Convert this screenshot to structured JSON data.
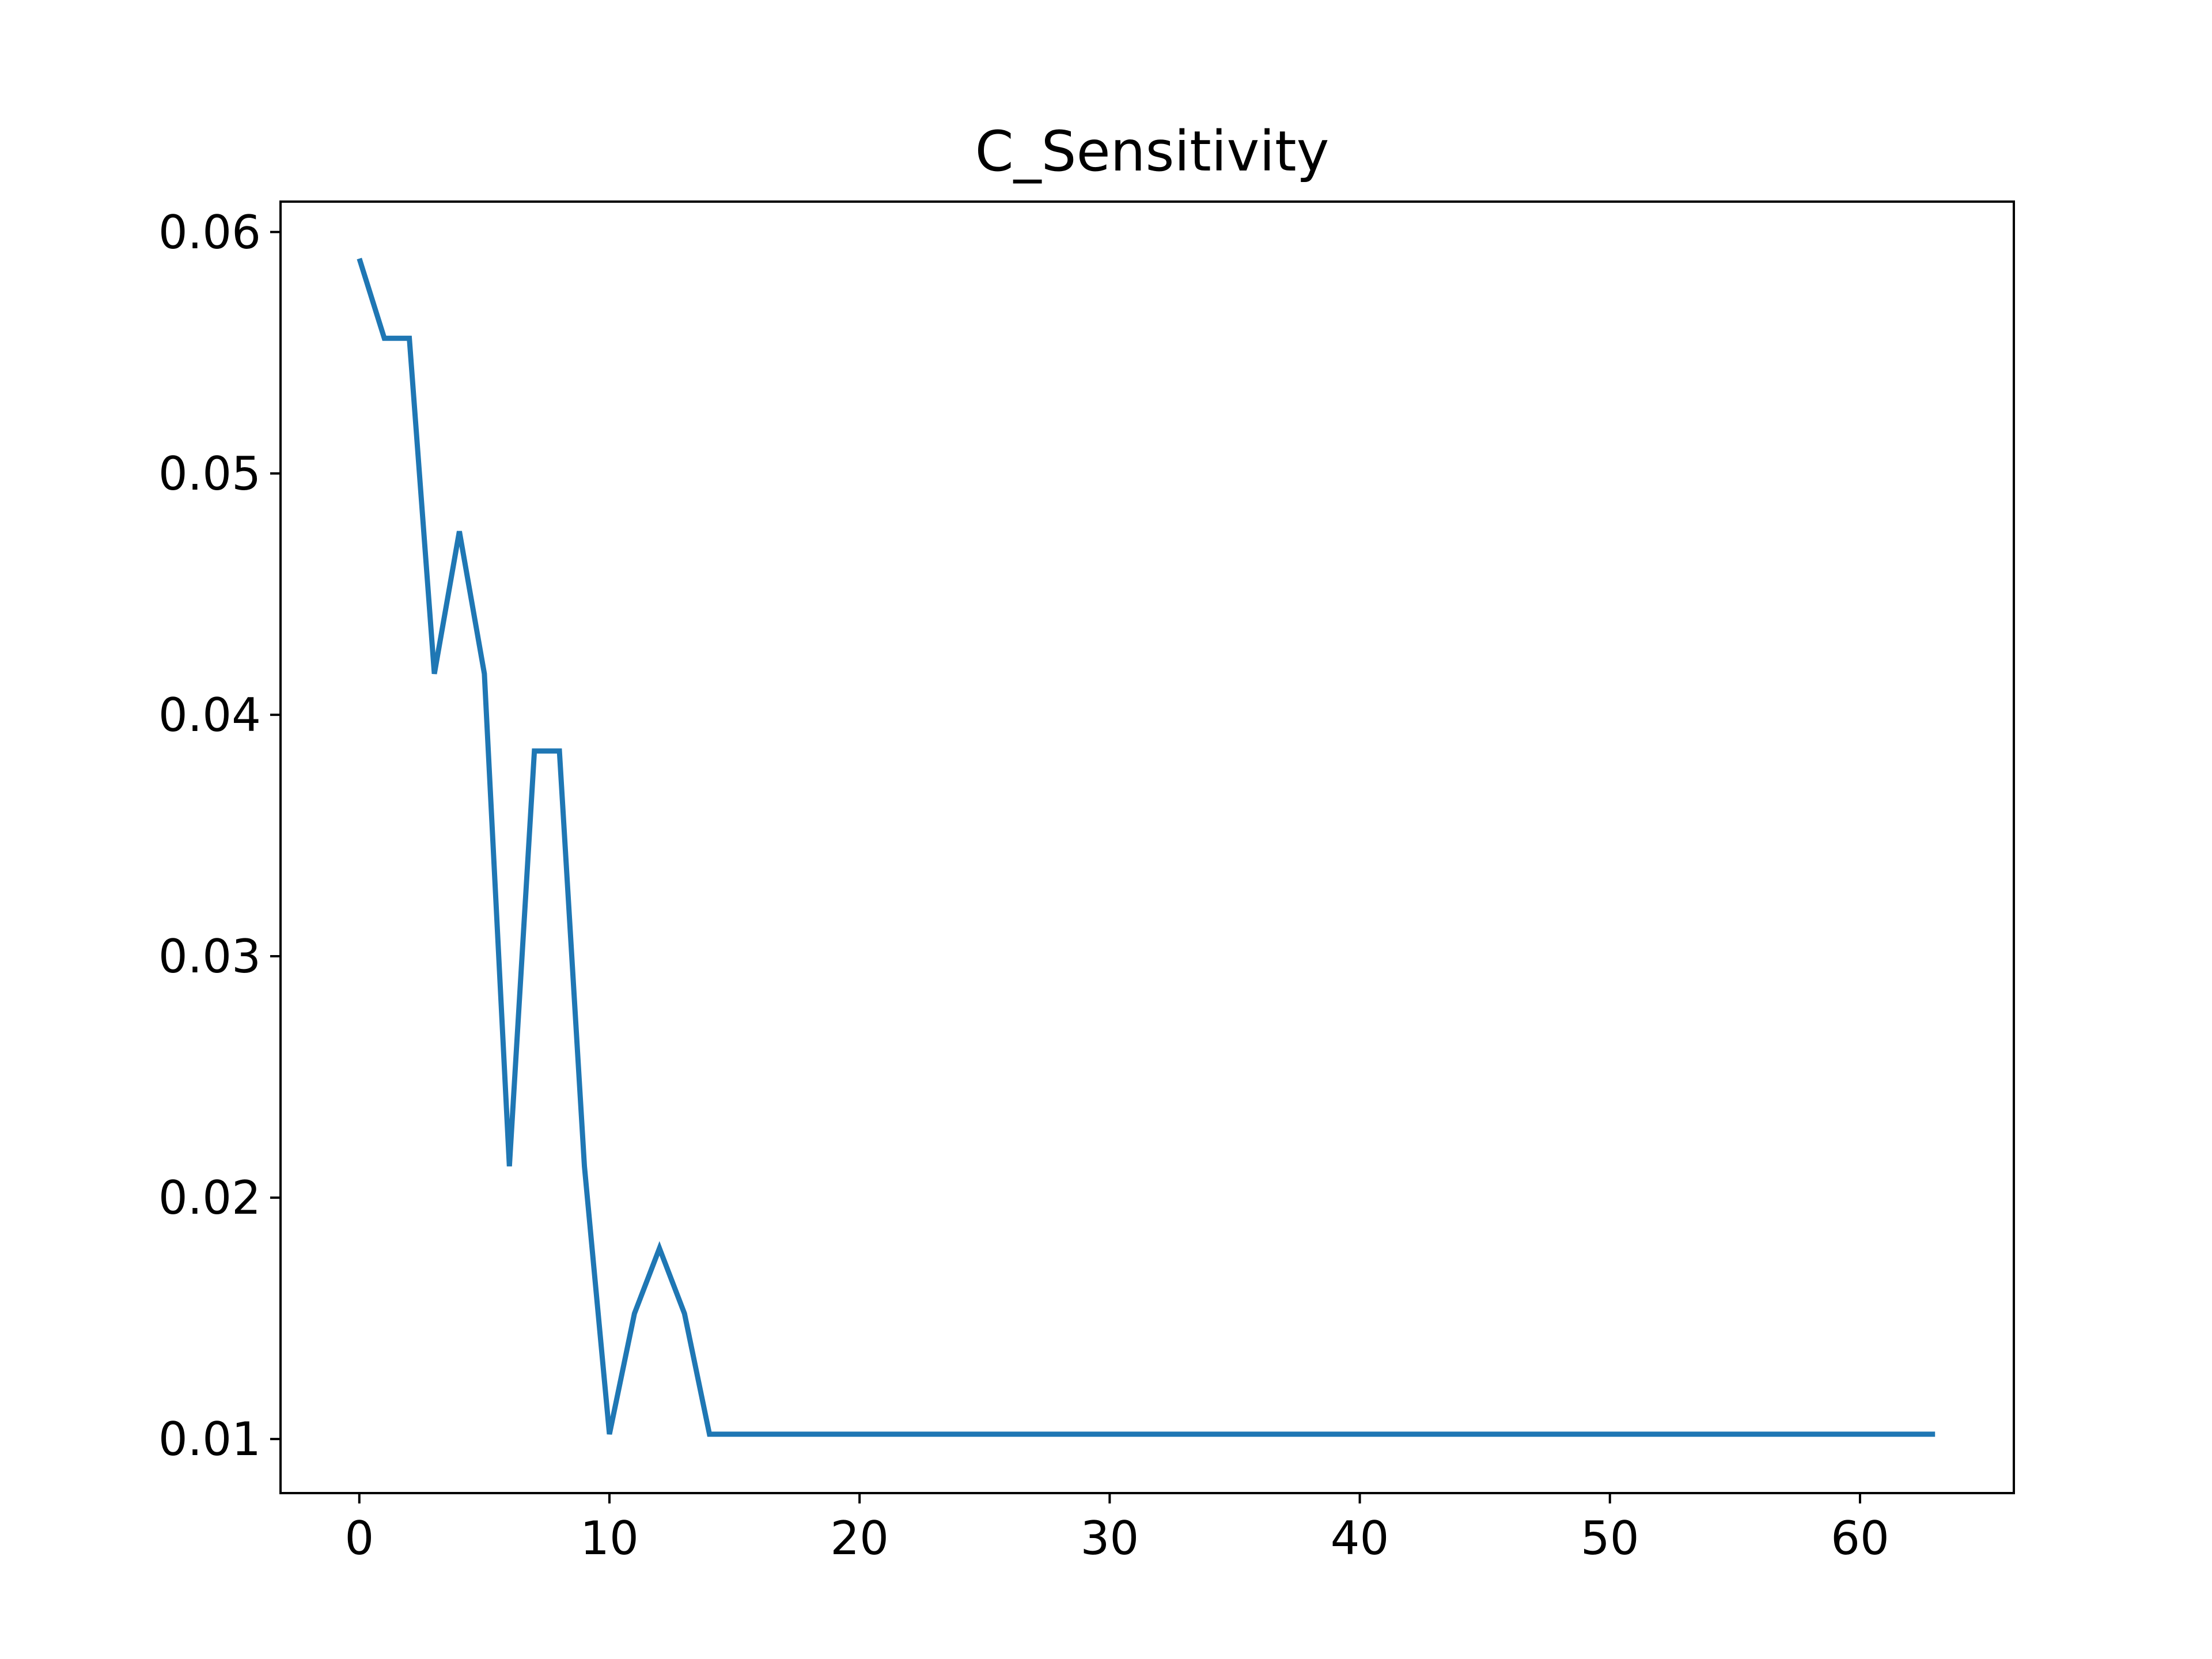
{
  "chart_data": {
    "type": "line",
    "title": "C_Sensitivity",
    "xlabel": "",
    "ylabel": "",
    "xlim": [
      -3.15,
      66.15
    ],
    "ylim": [
      0.00776,
      0.06126
    ],
    "xticks": [
      0,
      10,
      20,
      30,
      40,
      50,
      60
    ],
    "xtick_labels": [
      "0",
      "10",
      "20",
      "30",
      "40",
      "50",
      "60"
    ],
    "yticks": [
      0.01,
      0.02,
      0.03,
      0.04,
      0.05,
      0.06
    ],
    "ytick_labels": [
      "0.01",
      "0.02",
      "0.03",
      "0.04",
      "0.05",
      "0.06"
    ],
    "grid": false,
    "series": [
      {
        "color": "#1f77b4",
        "x": [
          0,
          1,
          2,
          3,
          4,
          5,
          6,
          7,
          8,
          9,
          10,
          11,
          12,
          13,
          14,
          15,
          16,
          17,
          18,
          19,
          20,
          21,
          22,
          23,
          24,
          25,
          26,
          27,
          28,
          29,
          30,
          31,
          32,
          33,
          34,
          35,
          36,
          37,
          38,
          39,
          40,
          41,
          42,
          43,
          44,
          45,
          46,
          47,
          48,
          49,
          50,
          51,
          52,
          53,
          54,
          55,
          56,
          57,
          58,
          59,
          60,
          61,
          62,
          63
        ],
        "values": [
          0.0589,
          0.0556,
          0.0556,
          0.0417,
          0.0476,
          0.0417,
          0.0213,
          0.0385,
          0.0385,
          0.0213,
          0.0102,
          0.0152,
          0.0179,
          0.0152,
          0.0102,
          0.0102,
          0.0102,
          0.0102,
          0.0102,
          0.0102,
          0.0102,
          0.0102,
          0.0102,
          0.0102,
          0.0102,
          0.0102,
          0.0102,
          0.0102,
          0.0102,
          0.0102,
          0.0102,
          0.0102,
          0.0102,
          0.0102,
          0.0102,
          0.0102,
          0.0102,
          0.0102,
          0.0102,
          0.0102,
          0.0102,
          0.0102,
          0.0102,
          0.0102,
          0.0102,
          0.0102,
          0.0102,
          0.0102,
          0.0102,
          0.0102,
          0.0102,
          0.0102,
          0.0102,
          0.0102,
          0.0102,
          0.0102,
          0.0102,
          0.0102,
          0.0102,
          0.0102,
          0.0102,
          0.0102,
          0.0102,
          0.0102
        ]
      }
    ]
  }
}
